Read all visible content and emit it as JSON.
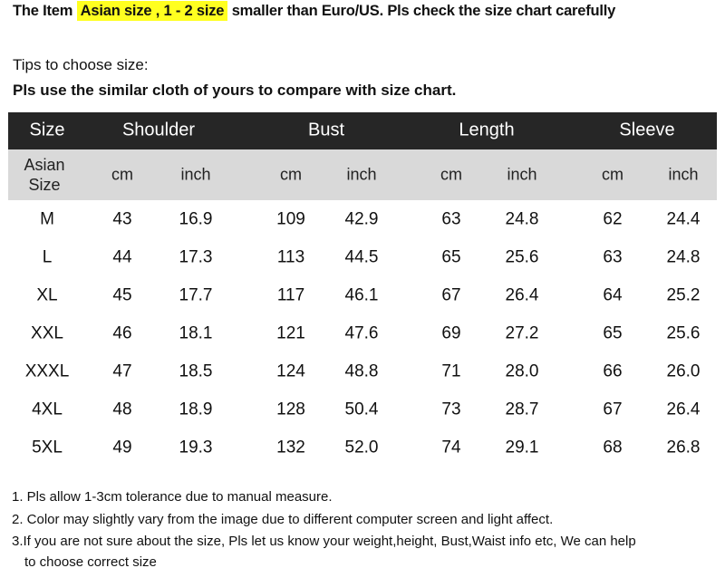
{
  "notice": {
    "prefix": "The Item",
    "highlight": "Asian size , 1 - 2 size",
    "suffix": "smaller than Euro/US. Pls check the size chart carefully",
    "highlight_color": "#ffff20"
  },
  "tips": {
    "title": "Tips to choose size:",
    "instruction": "Pls use the similar cloth of yours to compare with size chart."
  },
  "table": {
    "header": [
      "Size",
      "Shoulder",
      "Bust",
      "Length",
      "Sleeve"
    ],
    "subheader": {
      "size_label_1": "Asian",
      "size_label_2": "Size",
      "units": [
        "cm",
        "inch",
        "cm",
        "inch",
        "cm",
        "inch",
        "cm",
        "inch"
      ]
    },
    "rows": [
      [
        "M",
        "43",
        "16.9",
        "109",
        "42.9",
        "63",
        "24.8",
        "62",
        "24.4"
      ],
      [
        "L",
        "44",
        "17.3",
        "113",
        "44.5",
        "65",
        "25.6",
        "63",
        "24.8"
      ],
      [
        "XL",
        "45",
        "17.7",
        "117",
        "46.1",
        "67",
        "26.4",
        "64",
        "25.2"
      ],
      [
        "XXL",
        "46",
        "18.1",
        "121",
        "47.6",
        "69",
        "27.2",
        "65",
        "25.6"
      ],
      [
        "XXXL",
        "47",
        "18.5",
        "124",
        "48.8",
        "71",
        "28.0",
        "66",
        "26.0"
      ],
      [
        "4XL",
        "48",
        "18.9",
        "128",
        "50.4",
        "73",
        "28.7",
        "67",
        "26.4"
      ],
      [
        "5XL",
        "49",
        "19.3",
        "132",
        "52.0",
        "74",
        "29.1",
        "68",
        "26.8"
      ]
    ]
  },
  "notes": [
    "1. Pls allow 1-3cm tolerance due to manual measure.",
    "2. Color may slightly vary from the image due to different computer screen and light affect.",
    "3.If you are not sure about the size, Pls let us know your weight,height, Bust,Waist info etc, We can help",
    "   to choose correct size"
  ]
}
